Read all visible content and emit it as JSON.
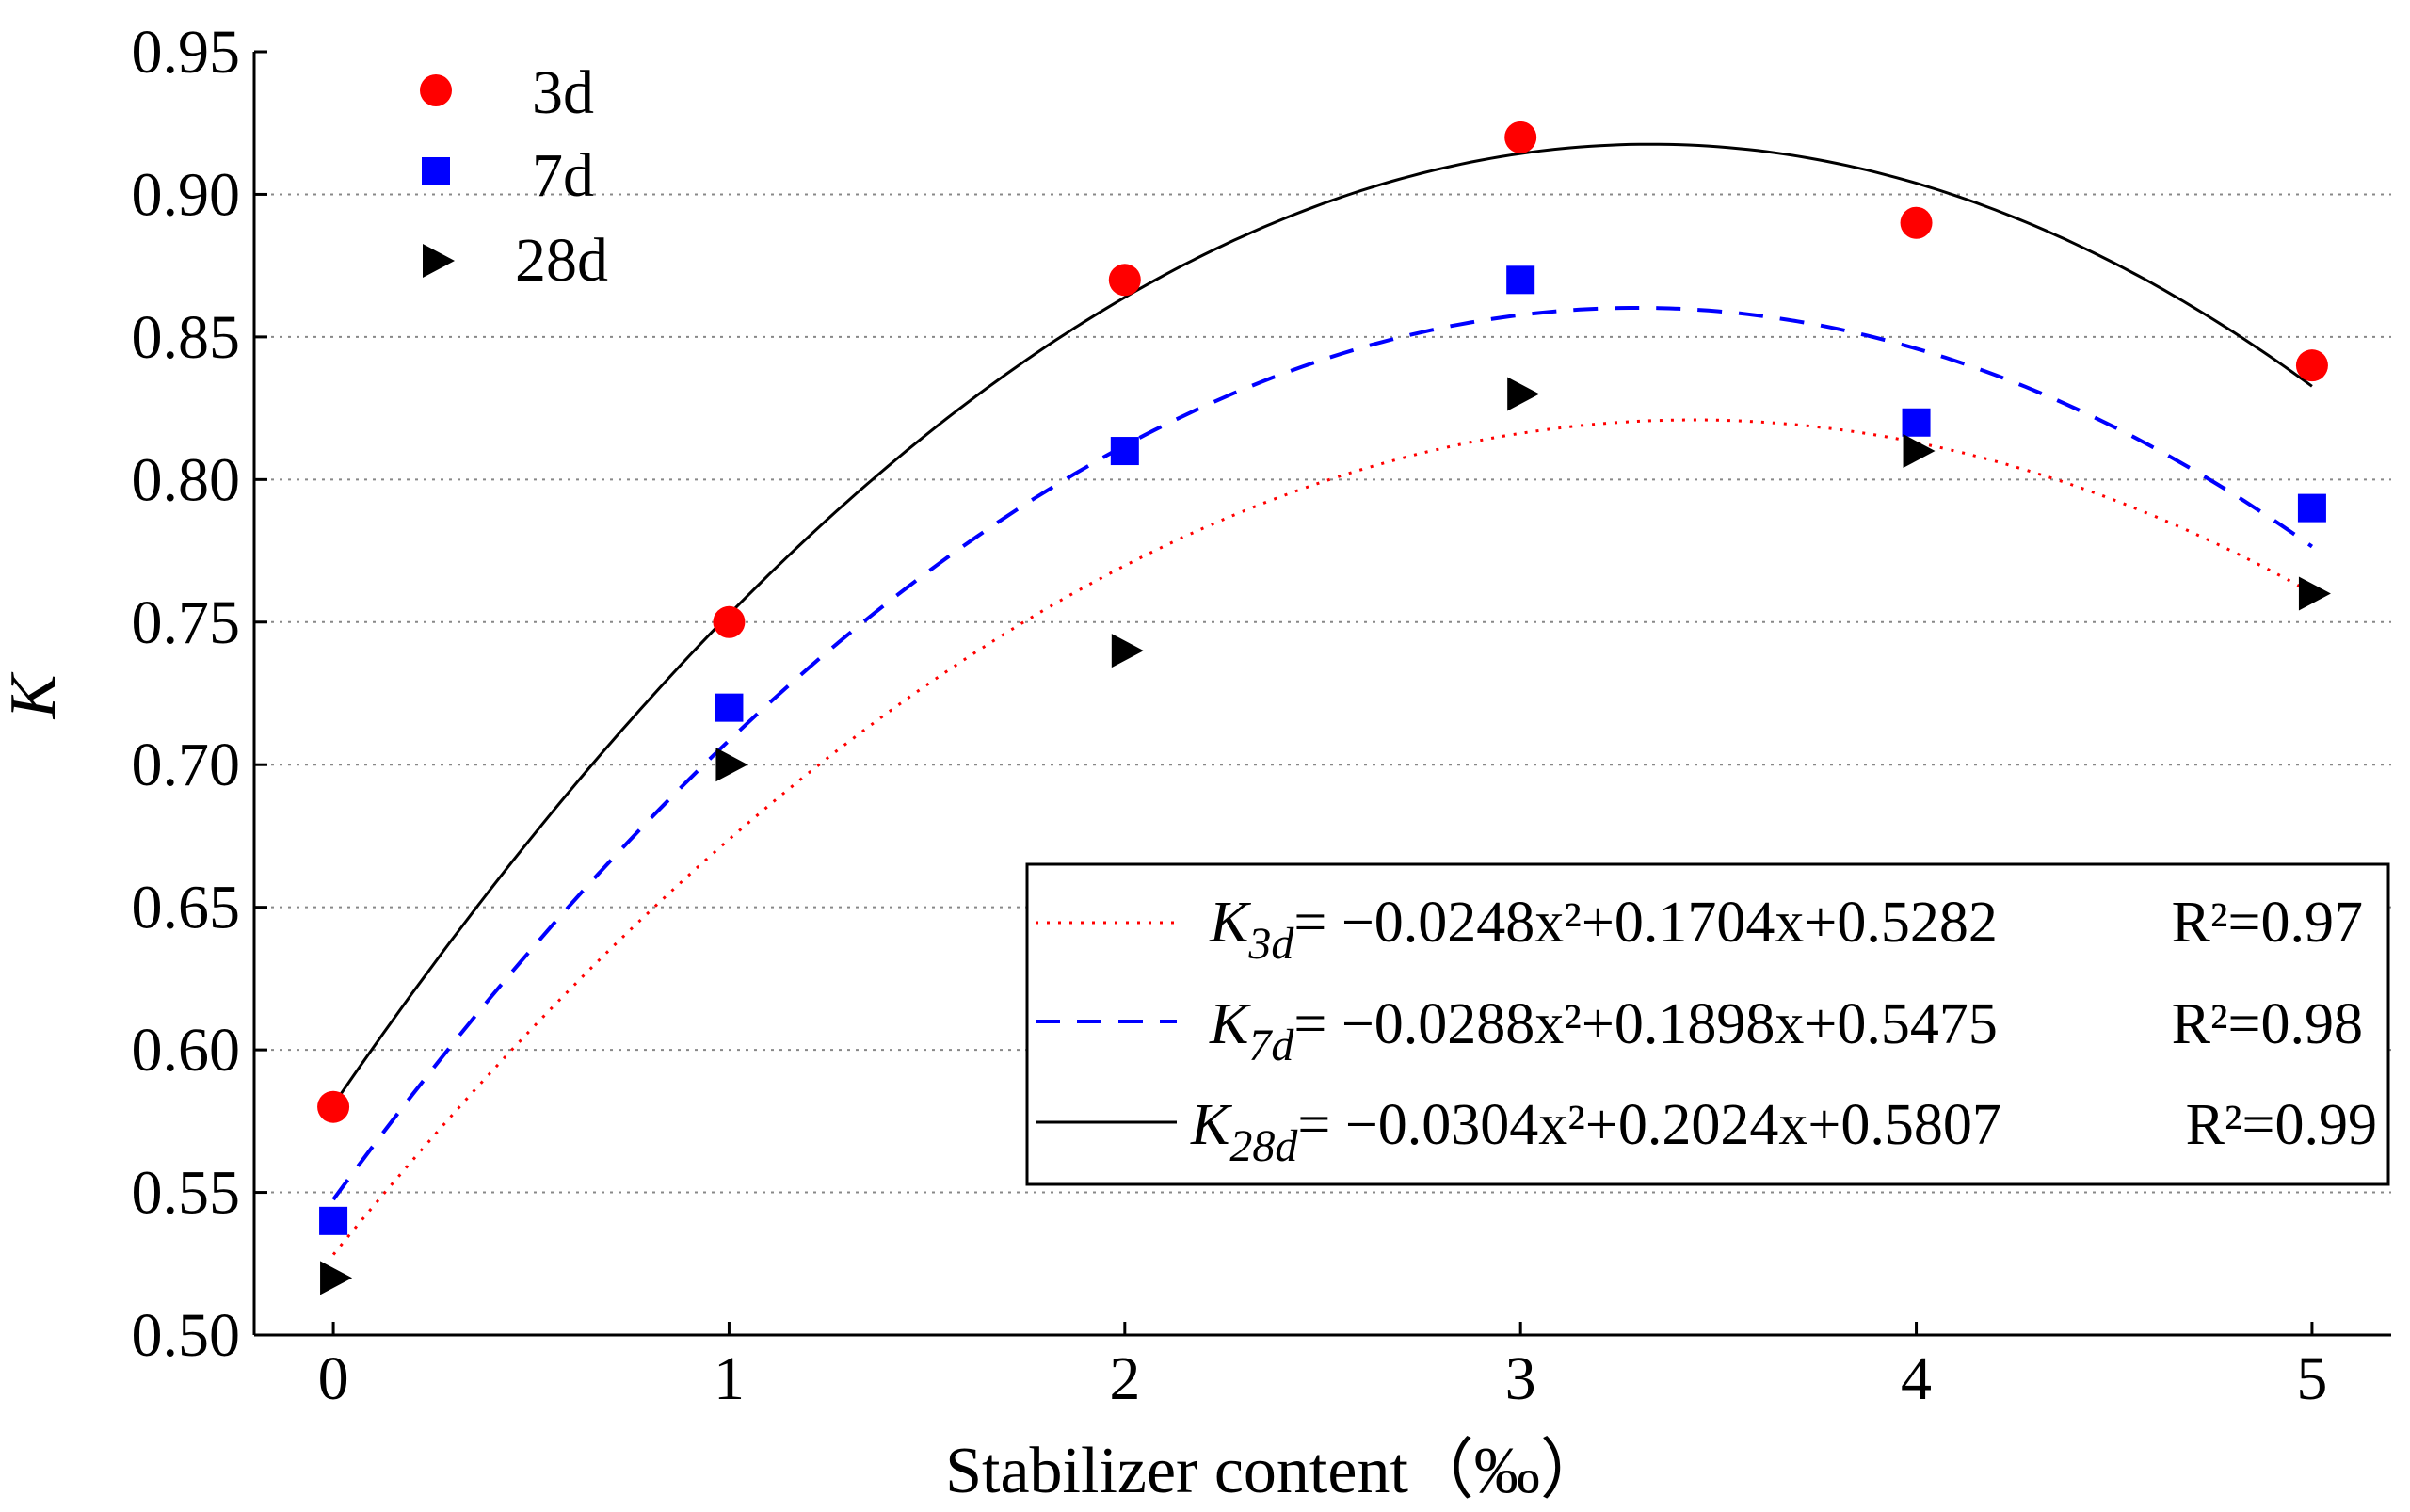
{
  "chart_data": {
    "type": "scatter",
    "xlabel": "Stabilizer content（‰）",
    "ylabel": "K",
    "xlim": [
      -0.2,
      5.2
    ],
    "ylim": [
      0.5,
      0.95
    ],
    "x_ticks": [
      "0",
      "1",
      "2",
      "3",
      "4",
      "5"
    ],
    "y_ticks": [
      "0.50",
      "0.55",
      "0.60",
      "0.65",
      "0.70",
      "0.75",
      "0.80",
      "0.85",
      "0.90",
      "0.95"
    ],
    "grid": "horizontal dotted",
    "x": [
      0,
      1,
      2,
      3,
      4,
      5
    ],
    "series": [
      {
        "name": "3d",
        "marker": "circle",
        "color": "#ff0000",
        "values": [
          0.58,
          0.75,
          0.87,
          0.92,
          0.89,
          0.84
        ]
      },
      {
        "name": "7d",
        "marker": "square",
        "color": "#0000ff",
        "values": [
          0.54,
          0.72,
          0.81,
          0.87,
          0.82,
          0.79
        ]
      },
      {
        "name": "28d",
        "marker": "triangle-right",
        "color": "#000000",
        "values": [
          0.52,
          0.7,
          0.74,
          0.83,
          0.81,
          0.76
        ]
      }
    ],
    "fits": [
      {
        "name": "3d",
        "style": "dotted",
        "color": "#ff0000",
        "coef": [
          -0.0248,
          0.1704,
          0.5282
        ],
        "k_sub": "3d",
        "equation": "−0.0248x²+0.1704x+0.5282",
        "r2": "R²=0.97"
      },
      {
        "name": "7d",
        "style": "dashed",
        "color": "#0000ff",
        "coef": [
          -0.0288,
          0.1898,
          0.5475
        ],
        "k_sub": "7d",
        "equation": "−0.0288x²+0.1898x+0.5475",
        "r2": "R²=0.98"
      },
      {
        "name": "28d",
        "style": "solid",
        "color": "#000000",
        "coef": [
          -0.0304,
          0.2024,
          0.5807
        ],
        "k_sub": "28d",
        "equation": "−0.0304x²+0.2024x+0.5807",
        "r2": "R²=0.99"
      }
    ],
    "legend_position": "top-left",
    "fit_legend_position": "bottom-right"
  }
}
